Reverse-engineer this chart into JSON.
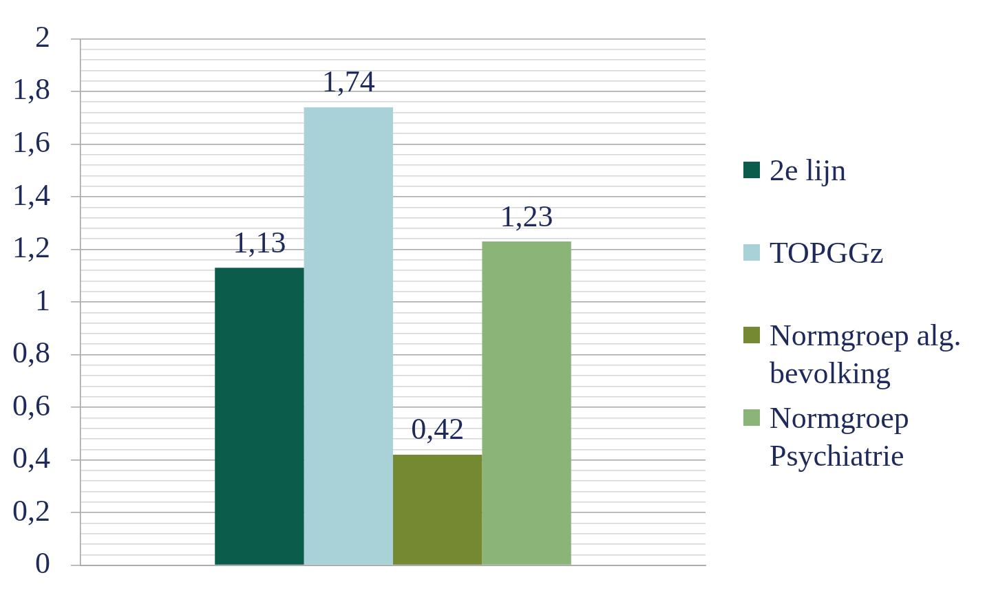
{
  "chart_data": {
    "type": "bar",
    "categories": [
      null
    ],
    "series": [
      {
        "name": "2e lijn",
        "color": "#0b5c4a",
        "values": [
          1.13
        ],
        "value_labels": [
          "1,13"
        ]
      },
      {
        "name": "TOPGGz",
        "color": "#a9d2d8",
        "values": [
          1.74
        ],
        "value_labels": [
          "1,74"
        ]
      },
      {
        "name": "Normgroep alg. bevolking",
        "color": "#748932",
        "values": [
          0.42
        ],
        "value_labels": [
          "0,42"
        ]
      },
      {
        "name": "Normgroep Psychiatrie",
        "color": "#8bb578",
        "values": [
          1.23
        ],
        "value_labels": [
          "1,23"
        ]
      }
    ],
    "ylim": [
      0,
      2
    ],
    "yticks": [
      0,
      {
        "value": 0.04,
        "label": null
      },
      {
        "value": 0.08,
        "label": null
      },
      {
        "value": 0.12,
        "label": null
      },
      {
        "value": 0.16,
        "label": null
      },
      {
        "value": 0.2,
        "label": "0,2"
      },
      {
        "value": 0.24,
        "label": null
      },
      {
        "value": 0.28,
        "label": null
      },
      {
        "value": 0.32,
        "label": null
      },
      {
        "value": 0.36,
        "label": null
      },
      {
        "value": 0.4,
        "label": "0,4"
      },
      {
        "value": 0.44,
        "label": null
      },
      {
        "value": 0.48,
        "label": null
      },
      {
        "value": 0.52,
        "label": null
      },
      {
        "value": 0.56,
        "label": null
      },
      {
        "value": 0.6,
        "label": "0,6"
      },
      {
        "value": 0.64,
        "label": null
      },
      {
        "value": 0.68,
        "label": null
      },
      {
        "value": 0.72,
        "label": null
      },
      {
        "value": 0.76,
        "label": null
      },
      {
        "value": 0.8,
        "label": "0,8"
      },
      {
        "value": 0.84,
        "label": null
      },
      {
        "value": 0.88,
        "label": null
      },
      {
        "value": 0.92,
        "label": null
      },
      {
        "value": 0.96,
        "label": null
      },
      1,
      {
        "value": 1.04,
        "label": null
      },
      {
        "value": 1.08,
        "label": null
      },
      {
        "value": 1.12,
        "label": null
      },
      {
        "value": 1.16,
        "label": null
      },
      {
        "value": 1.2,
        "label": "1,2"
      },
      {
        "value": 1.24,
        "label": null
      },
      {
        "value": 1.28,
        "label": null
      },
      {
        "value": 1.32,
        "label": null
      },
      {
        "value": 1.36,
        "label": null
      },
      {
        "value": 1.4,
        "label": "1,4"
      },
      {
        "value": 1.44,
        "label": null
      },
      {
        "value": 1.48,
        "label": null
      },
      {
        "value": 1.52,
        "label": null
      },
      {
        "value": 1.56,
        "label": null
      },
      {
        "value": 1.6,
        "label": "1,6"
      },
      {
        "value": 1.64,
        "label": null
      },
      {
        "value": 1.68,
        "label": null
      },
      {
        "value": 1.72,
        "label": null
      },
      {
        "value": 1.76,
        "label": null
      },
      {
        "value": 1.8,
        "label": "1,8"
      },
      {
        "value": 1.84,
        "label": null
      },
      {
        "value": 1.88,
        "label": null
      },
      {
        "value": 1.92,
        "label": null
      },
      {
        "value": 1.96,
        "label": null
      },
      2
    ],
    "grid": "y",
    "legend": "right"
  }
}
